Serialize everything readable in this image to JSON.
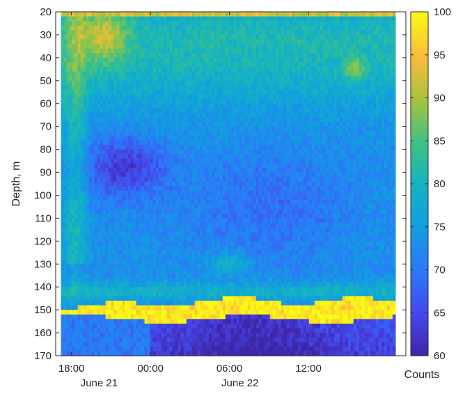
{
  "chart_data": {
    "type": "heatmap",
    "title": "",
    "xlabel": "",
    "ylabel": "Depth, m",
    "colorbar_label": "Counts",
    "colormap": "parula",
    "clim": [
      60,
      100
    ],
    "colorbar_ticks": [
      "60",
      "65",
      "70",
      "75",
      "80",
      "85",
      "90",
      "95",
      "100"
    ],
    "colorbar_tick_values": [
      60,
      65,
      70,
      75,
      80,
      85,
      90,
      95,
      100
    ],
    "y_axis": {
      "reversed": true,
      "ylim": [
        20,
        170
      ],
      "tick_values": [
        20,
        30,
        40,
        50,
        60,
        70,
        80,
        90,
        100,
        110,
        120,
        130,
        140,
        150,
        160,
        170
      ],
      "tick_labels": [
        "20",
        "30",
        "40",
        "50",
        "60",
        "70",
        "80",
        "90",
        "100",
        "110",
        "120",
        "130",
        "140",
        "150",
        "160",
        "170"
      ]
    },
    "x_axis": {
      "unit": "hours since 00:00 June 21",
      "xlim": [
        -7.2,
        19.4
      ],
      "data_range": [
        -6.8,
        18.6
      ],
      "tick_values": [
        -6,
        0,
        6,
        12
      ],
      "tick_labels": [
        "18:00",
        "00:00",
        "06:00",
        "12:00"
      ],
      "date_labels": [
        {
          "text": "June 21",
          "at": 1.2
        },
        {
          "text": "June 22",
          "at": 1.2
        }
      ]
    },
    "features": [
      {
        "description": "yellow scattering layer",
        "depth_top": 146,
        "depth_bottom": 156,
        "counts": 99
      },
      {
        "description": "surface layer",
        "depth_top": 20,
        "depth_bottom": 23,
        "counts": 91
      },
      {
        "description": "diffuse background water column",
        "counts_range": [
          68,
          82
        ]
      },
      {
        "description": "deep low-count layer",
        "depth_top": 156,
        "depth_bottom": 170,
        "counts_range": [
          60,
          67
        ]
      }
    ]
  },
  "labels": {
    "ylabel": "Depth, m",
    "colorbar_label": "Counts",
    "date1": "June 21",
    "date2": "June 22"
  }
}
